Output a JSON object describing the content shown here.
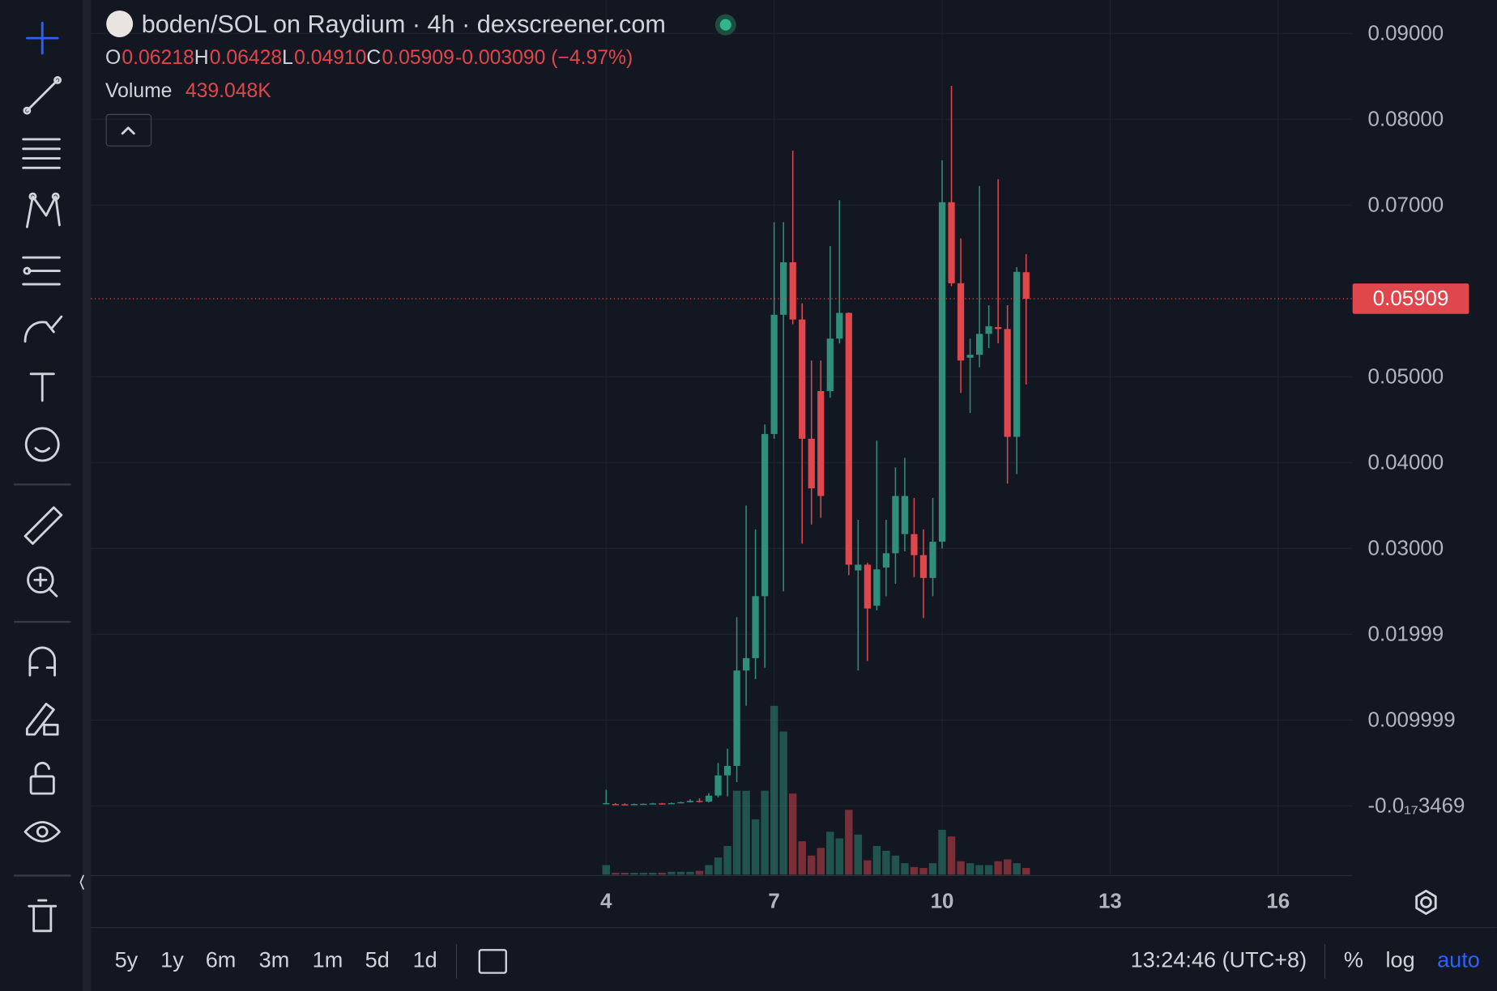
{
  "chart_data": {
    "type": "candlestick",
    "title": "boden/SOL on Raydium · 4h · dexscreener.com",
    "legend": [
      {
        "label": "O",
        "value": "0.06218"
      },
      {
        "label": "H",
        "value": "0.06428"
      },
      {
        "label": "L",
        "value": "0.04910"
      },
      {
        "label": "C",
        "value": "0.05909"
      },
      {
        "label": "",
        "value": "-0.003090 (−4.97%)"
      }
    ],
    "volume_legend": {
      "label": "Volume",
      "value": "439.048K"
    },
    "last_price": 0.05909,
    "x": [
      4,
      4.1667,
      4.3333,
      4.5,
      4.6667,
      4.8333,
      5,
      5.1667,
      5.3333,
      5.5,
      5.6667,
      5.8333,
      6,
      6.1667,
      6.3333,
      6.5,
      6.6667,
      6.8333,
      7,
      7.1667,
      7.3333,
      7.5,
      7.6667,
      7.8333,
      8,
      8.1667,
      8.3333,
      8.5,
      8.6667,
      8.8333,
      9,
      9.1667,
      9.3333,
      9.5,
      9.6667,
      9.8333,
      10,
      10.1667,
      10.3333,
      10.5,
      10.6667,
      10.8333,
      11,
      11.1667,
      11.3333,
      11.5
    ],
    "open": [
      0.00022,
      0.00022,
      0.0002,
      0.00018,
      0.00022,
      0.00025,
      0.0003,
      0.00027,
      0.00033,
      0.00044,
      0.0006,
      0.0005,
      0.00122,
      0.00356,
      0.00467,
      0.01578,
      0.01722,
      0.02444,
      0.04333,
      0.05722,
      0.06333,
      0.05667,
      0.04278,
      0.04833,
      0.04833,
      0.05444,
      0.05744,
      0.02744,
      0.02811,
      0.02333,
      0.02778,
      0.02944,
      0.03167,
      0.03167,
      0.02922,
      0.02656,
      0.03078,
      0.07033,
      0.06089,
      0.05222,
      0.05256,
      0.055,
      0.05578,
      0.05556,
      0.043,
      0.06218
    ],
    "high": [
      0.00189,
      0.00033,
      0.0003,
      0.00028,
      0.0003,
      0.00035,
      0.00035,
      0.0004,
      0.0005,
      0.0008,
      0.0009,
      0.0015,
      0.005,
      0.00667,
      0.022,
      0.035,
      0.03222,
      0.04444,
      0.068,
      0.068,
      0.07633,
      0.05856,
      0.05189,
      0.05189,
      0.06522,
      0.07056,
      0.0575,
      0.03333,
      0.02833,
      0.04256,
      0.03333,
      0.03944,
      0.04056,
      0.03589,
      0.03222,
      0.03589,
      0.07522,
      0.08389,
      0.06611,
      0.05444,
      0.07222,
      0.05833,
      0.073,
      0.05833,
      0.06278,
      0.06428
    ],
    "low": [
      0.00022,
      0.00011,
      0.0001,
      0.00015,
      0.0002,
      0.0002,
      0.00022,
      0.00025,
      0.0003,
      0.0004,
      0.0004,
      0.0004,
      0.001,
      0.00111,
      0.00278,
      0.01167,
      0.01478,
      0.01611,
      0.04278,
      0.025,
      0.05611,
      0.03056,
      0.03278,
      0.03356,
      0.04756,
      0.05389,
      0.02689,
      0.01578,
      0.01689,
      0.02278,
      0.02444,
      0.02589,
      0.02967,
      0.02667,
      0.02189,
      0.02444,
      0.03,
      0.06056,
      0.04811,
      0.04578,
      0.05111,
      0.05333,
      0.05389,
      0.03756,
      0.03867,
      0.0491
    ],
    "close": [
      0.00033,
      0.0002,
      0.00018,
      0.00022,
      0.00025,
      0.0003,
      0.00027,
      0.00033,
      0.00044,
      0.0006,
      0.0005,
      0.0012,
      0.00356,
      0.00467,
      0.01578,
      0.01722,
      0.02444,
      0.04333,
      0.05722,
      0.06333,
      0.05667,
      0.04278,
      0.037,
      0.03611,
      0.05444,
      0.05744,
      0.02811,
      0.02811,
      0.023,
      0.02756,
      0.02944,
      0.03611,
      0.03611,
      0.02922,
      0.02656,
      0.03078,
      0.07033,
      0.06089,
      0.05189,
      0.05256,
      0.055,
      0.05589,
      0.05556,
      0.043,
      0.06222,
      0.05909
    ],
    "volume": [
      627000,
      125000,
      125000,
      125000,
      125000,
      125000,
      125000,
      188000,
      188000,
      188000,
      251000,
      627000,
      1129000,
      1882000,
      5519000,
      5519000,
      3638000,
      5519000,
      11102000,
      9408000,
      5331000,
      2195000,
      1254000,
      1756000,
      2822000,
      2383000,
      4265000,
      2634000,
      941000,
      1882000,
      1568000,
      1254000,
      753000,
      502000,
      439000,
      753000,
      2948000,
      2509000,
      878000,
      753000,
      627000,
      627000,
      878000,
      1004000,
      753000,
      439048
    ],
    "up_color": "#2f8f7b",
    "down_color": "#e0474c",
    "xlim": [
      -5.2,
      17.33
    ],
    "xticks": [
      4,
      7,
      10,
      13,
      16
    ],
    "ylim": [
      -0.008,
      0.09389
    ],
    "yticks": [
      {
        "value": 0.09,
        "label": "0.09000"
      },
      {
        "value": 0.08,
        "label": "0.08000"
      },
      {
        "value": 0.07,
        "label": "0.07000"
      },
      {
        "value": 0.05,
        "label": "0.05000"
      },
      {
        "value": 0.04,
        "label": "0.04000"
      },
      {
        "value": 0.03,
        "label": "0.03000"
      },
      {
        "value": 0.01999,
        "label": "0.01999"
      },
      {
        "value": 0.009999,
        "label": "0.009999"
      },
      {
        "value": -3.469e-18,
        "label": "-0.0₁₇3469"
      }
    ],
    "grid": true
  },
  "toolbar": {
    "ranges": [
      "5y",
      "1y",
      "6m",
      "3m",
      "1m",
      "5d",
      "1d"
    ],
    "time": "13:24:46 (UTC+8)",
    "options": [
      "%",
      "log",
      "auto"
    ]
  }
}
